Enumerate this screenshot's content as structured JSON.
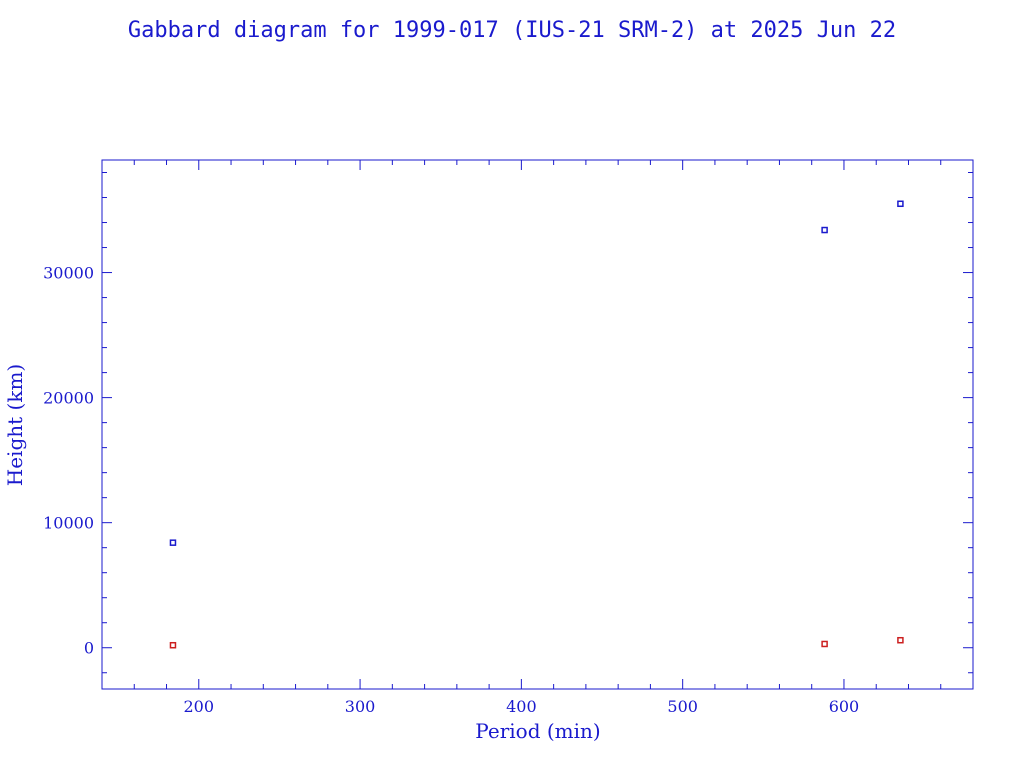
{
  "colors": {
    "axis": "#1a1acd",
    "apogee": "#1a1acd",
    "perigee": "#cc1f1f"
  },
  "chart_data": {
    "type": "scatter",
    "title": "Gabbard diagram for 1999-017 (IUS-21 SRM-2) at 2025 Jun 22",
    "xlabel": "Period (min)",
    "ylabel": "Height (km)",
    "xlim": [
      140,
      680
    ],
    "ylim": [
      -3300,
      39000
    ],
    "x_ticks": [
      200,
      300,
      400,
      500,
      600
    ],
    "y_ticks": [
      0,
      10000,
      20000,
      30000
    ],
    "x_minor_step": 20,
    "y_minor_step": 2000,
    "grid": false,
    "series": [
      {
        "color": "#1a1acd",
        "points": [
          {
            "x": 184,
            "y": 8400
          },
          {
            "x": 588,
            "y": 33400
          },
          {
            "x": 635,
            "y": 35500
          }
        ]
      },
      {
        "color": "#cc1f1f",
        "points": [
          {
            "x": 184,
            "y": 200
          },
          {
            "x": 588,
            "y": 300
          },
          {
            "x": 635,
            "y": 600
          }
        ]
      }
    ]
  }
}
